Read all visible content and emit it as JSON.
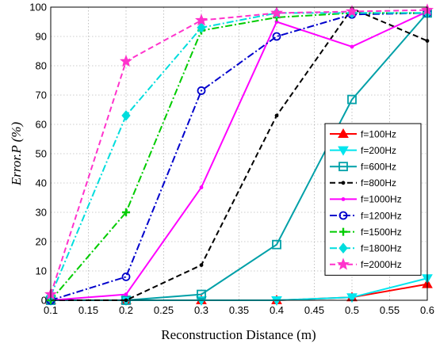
{
  "chart_data": {
    "type": "line",
    "title": "",
    "xlabel": "Reconstruction Distance (m)",
    "ylabel": "Error.P (%)",
    "xlim": [
      0.1,
      0.6
    ],
    "ylim": [
      0,
      100
    ],
    "x_ticks": [
      "0.1",
      "0.15",
      "0.2",
      "0.25",
      "0.3",
      "0.35",
      "0.4",
      "0.45",
      "0.5",
      "0.55",
      "0.6"
    ],
    "y_ticks": [
      "0",
      "10",
      "20",
      "30",
      "40",
      "50",
      "60",
      "70",
      "80",
      "90",
      "100"
    ],
    "grid": true,
    "legend_position": "right",
    "x": [
      0.1,
      0.2,
      0.3,
      0.4,
      0.5,
      0.6
    ],
    "series": [
      {
        "name": "f=100Hz",
        "color": "#ff0000",
        "line": "solid",
        "marker": "triangle-up",
        "values": [
          0,
          0,
          0,
          0,
          1,
          5.5
        ]
      },
      {
        "name": "f=200Hz",
        "color": "#00e5ee",
        "line": "solid",
        "marker": "triangle-down",
        "values": [
          0,
          0,
          0,
          0,
          1,
          7.5
        ]
      },
      {
        "name": "f=600Hz",
        "color": "#00a0a8",
        "line": "solid",
        "marker": "square",
        "values": [
          0,
          0,
          2,
          19,
          68.5,
          98
        ]
      },
      {
        "name": "f=800Hz",
        "color": "#000000",
        "line": "dashed",
        "marker": "point",
        "values": [
          0,
          0,
          12,
          63,
          99.5,
          88.5
        ]
      },
      {
        "name": "f=1000Hz",
        "color": "#ff00ff",
        "line": "solid",
        "marker": "point",
        "values": [
          0,
          2,
          38.5,
          95,
          86.5,
          98.5
        ]
      },
      {
        "name": "f=1200Hz",
        "color": "#0000cc",
        "line": "dashdot",
        "marker": "circle",
        "values": [
          0,
          8,
          71.5,
          90,
          97.5,
          98
        ]
      },
      {
        "name": "f=1500Hz",
        "color": "#00cc00",
        "line": "dashdot",
        "marker": "plus",
        "values": [
          0,
          30,
          92,
          96.5,
          98,
          98
        ]
      },
      {
        "name": "f=1800Hz",
        "color": "#00dddd",
        "line": "dashdot",
        "marker": "diamond",
        "values": [
          1.5,
          63,
          93,
          98,
          98,
          98
        ]
      },
      {
        "name": "f=2000Hz",
        "color": "#ff33cc",
        "line": "dashed",
        "marker": "star",
        "values": [
          2,
          81.5,
          95.5,
          98,
          98.5,
          99
        ]
      }
    ]
  }
}
